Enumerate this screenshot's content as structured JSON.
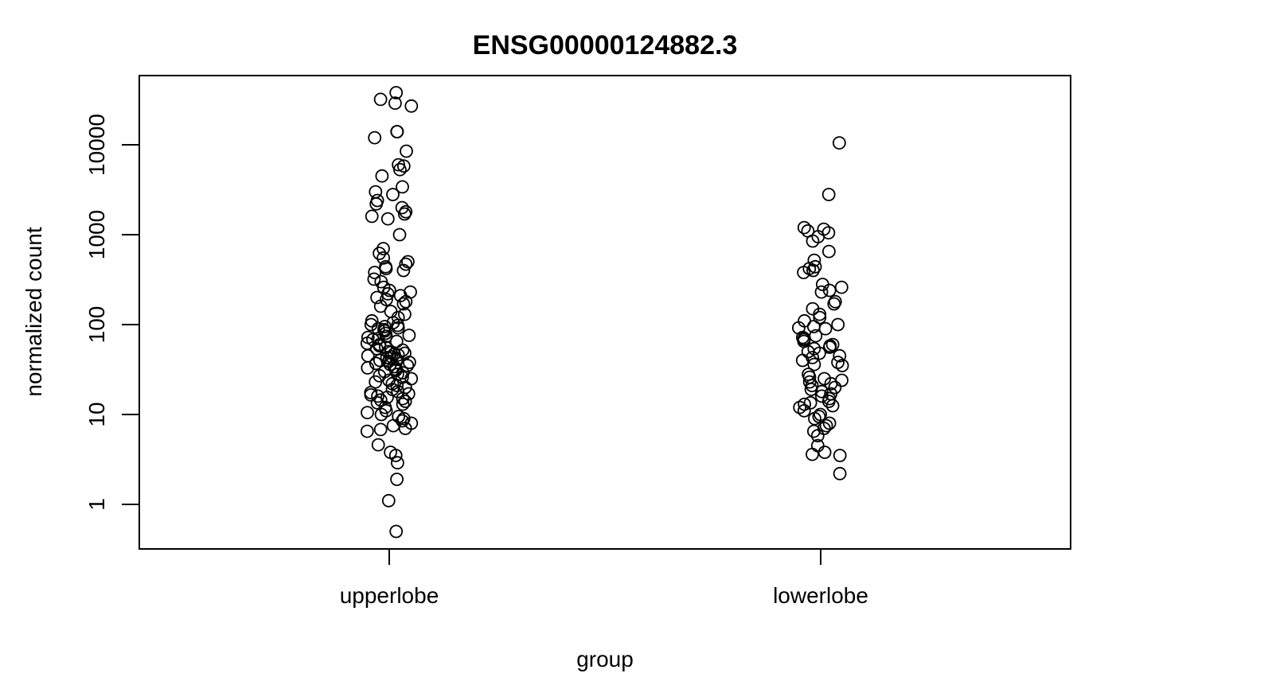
{
  "chart_data": {
    "type": "scatter",
    "title": "ENSG00000124882.3",
    "xlabel": "group",
    "ylabel": "normalized count",
    "y_scale": "log10",
    "ylim": [
      0.4,
      60000
    ],
    "y_ticks": [
      1,
      10,
      100,
      1000,
      10000
    ],
    "y_tick_labels": [
      "1",
      "10",
      "100",
      "1000",
      "10000"
    ],
    "categories": [
      "upperlobe",
      "lowerlobe"
    ],
    "grid": false,
    "legend": "none",
    "series": [
      {
        "category": "upperlobe",
        "values": [
          38000,
          32000,
          29000,
          27000,
          14000,
          14000,
          12000,
          8500,
          6000,
          5800,
          5300,
          4500,
          3400,
          3000,
          2800,
          2400,
          2200,
          2000,
          1800,
          1700,
          1600,
          1500,
          1000,
          700,
          620,
          550,
          500,
          470,
          440,
          420,
          400,
          380,
          320,
          300,
          260,
          240,
          230,
          220,
          210,
          200,
          190,
          180,
          170,
          160,
          140,
          130,
          120,
          110,
          105,
          100,
          98,
          95,
          92,
          90,
          88,
          85,
          80,
          76,
          74,
          72,
          70,
          68,
          65,
          62,
          60,
          58,
          56,
          54,
          52,
          50,
          49,
          48,
          47,
          46,
          45,
          44,
          43,
          42,
          41,
          40,
          39,
          38,
          37,
          36,
          35,
          34,
          33,
          32,
          31,
          30,
          29,
          28,
          27,
          26,
          25,
          24,
          23,
          22,
          21,
          20,
          19,
          18,
          17.5,
          17,
          16.5,
          16,
          15.5,
          15,
          14.5,
          14,
          13.5,
          13,
          12,
          11,
          10.5,
          10,
          9.5,
          9,
          8.5,
          8,
          7.5,
          7,
          6.8,
          6.5,
          4.6,
          3.8,
          3.5,
          2.9,
          1.9,
          1.1,
          0.5
        ]
      },
      {
        "category": "lowerlobe",
        "values": [
          10500,
          2800,
          1200,
          1150,
          1100,
          1050,
          950,
          850,
          650,
          520,
          440,
          420,
          400,
          380,
          280,
          260,
          240,
          230,
          180,
          170,
          150,
          130,
          120,
          110,
          100,
          95,
          92,
          90,
          75,
          72,
          70,
          68,
          65,
          60,
          58,
          56,
          54,
          50,
          48,
          45,
          43,
          40,
          38,
          36,
          35,
          28,
          26,
          25,
          24,
          23,
          22,
          21,
          20,
          19,
          18,
          17,
          16,
          15,
          14,
          13.5,
          13,
          12.5,
          12,
          11,
          10,
          9.5,
          9,
          8,
          7.5,
          7,
          6.5,
          5.8,
          4.5,
          3.8,
          3.6,
          3.5,
          2.2
        ]
      }
    ]
  }
}
